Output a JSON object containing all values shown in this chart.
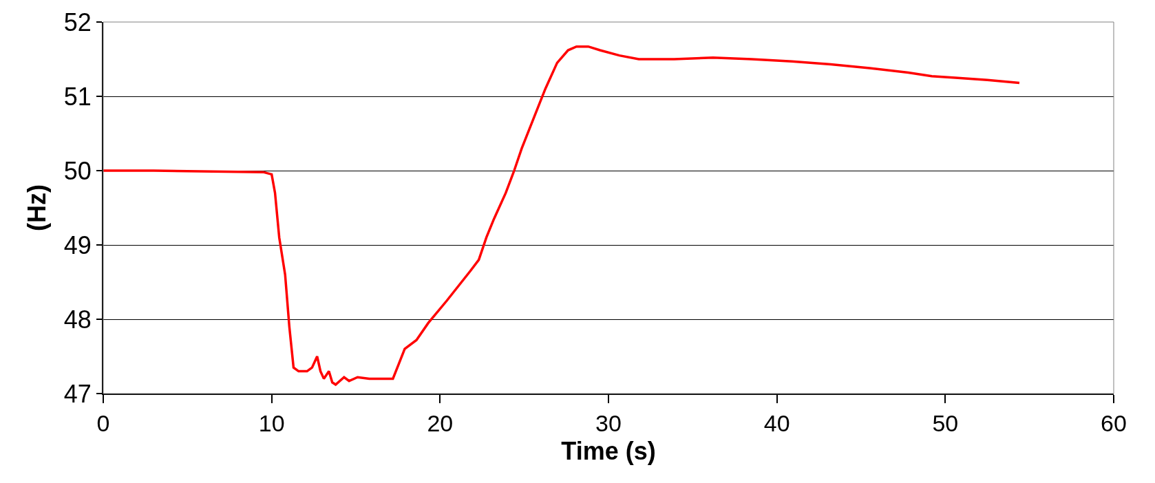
{
  "chart_data": {
    "type": "line",
    "xlabel": "Time (s)",
    "ylabel": "(Hz)",
    "xlim": [
      0,
      60
    ],
    "xticks": [
      0,
      10,
      20,
      30,
      40,
      50,
      60
    ],
    "ylim": [
      47,
      52
    ],
    "yticks": [
      47,
      48,
      49,
      50,
      51,
      52
    ],
    "grid": "y",
    "legend": false,
    "marker": "none",
    "line_style": "solid",
    "series": [
      {
        "color": "#ff0000",
        "x": [
          0,
          3,
          9.5,
          10,
          10.2,
          10.45,
          10.8,
          11.05,
          11.3,
          11.6,
          12.1,
          12.4,
          12.7,
          12.9,
          13.1,
          13.4,
          13.6,
          13.8,
          14.3,
          14.6,
          15.1,
          15.8,
          16.5,
          17.2,
          17.55,
          17.9,
          18.6,
          19.3,
          20.4,
          21.8,
          22.3,
          22.75,
          23.2,
          23.9,
          24.4,
          24.85,
          25.55,
          26.25,
          26.95,
          27.6,
          28.1,
          28.8,
          29.5,
          30.65,
          31.8,
          33.9,
          36.2,
          38.5,
          40.9,
          43.2,
          45.5,
          47.8,
          49.2,
          50.6,
          52.5,
          54.4
        ],
        "values": [
          50.0,
          50.0,
          49.98,
          49.95,
          49.7,
          49.1,
          48.6,
          47.9,
          47.35,
          47.3,
          47.3,
          47.35,
          47.5,
          47.3,
          47.2,
          47.3,
          47.15,
          47.12,
          47.22,
          47.17,
          47.22,
          47.2,
          47.2,
          47.2,
          47.4,
          47.6,
          47.72,
          47.95,
          48.25,
          48.65,
          48.8,
          49.1,
          49.35,
          49.7,
          50.0,
          50.3,
          50.7,
          51.1,
          51.45,
          51.62,
          51.67,
          51.67,
          51.62,
          51.55,
          51.5,
          51.5,
          51.52,
          51.5,
          51.47,
          51.43,
          51.38,
          51.32,
          51.27,
          51.25,
          51.22,
          51.18
        ]
      }
    ]
  }
}
